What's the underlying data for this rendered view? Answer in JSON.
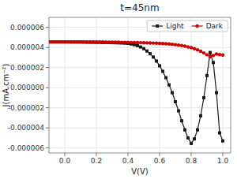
{
  "chart_data": {
    "type": "line",
    "title": "t=45nm",
    "xlabel": "V(V)",
    "ylabel": "J(mA.cm⁻²)",
    "x": [
      -0.1,
      -0.08,
      -0.06,
      -0.04,
      -0.02,
      0.0,
      0.02,
      0.04,
      0.06,
      0.08,
      0.1,
      0.12,
      0.14,
      0.16,
      0.18,
      0.2,
      0.22,
      0.24,
      0.26,
      0.28,
      0.3,
      0.32,
      0.34,
      0.36,
      0.38,
      0.4,
      0.42,
      0.44,
      0.46,
      0.48,
      0.5,
      0.52,
      0.54,
      0.56,
      0.58,
      0.6,
      0.62,
      0.64,
      0.66,
      0.68,
      0.7,
      0.72,
      0.74,
      0.76,
      0.78,
      0.8,
      0.82,
      0.84,
      0.86,
      0.88,
      0.9,
      0.92,
      0.94,
      0.96,
      0.98,
      1.0
    ],
    "series": [
      {
        "name": "Light",
        "color": "#1a1a1a",
        "marker": "square",
        "values": [
          4.55e-06,
          4.55e-06,
          4.55e-06,
          4.55e-06,
          4.55e-06,
          4.55e-06,
          4.55e-06,
          4.54e-06,
          4.54e-06,
          4.54e-06,
          4.54e-06,
          4.53e-06,
          4.53e-06,
          4.52e-06,
          4.52e-06,
          4.51e-06,
          4.51e-06,
          4.5e-06,
          4.5e-06,
          4.49e-06,
          4.48e-06,
          4.47e-06,
          4.46e-06,
          4.45e-06,
          4.43e-06,
          4.41e-06,
          4.35e-06,
          4.28e-06,
          4.18e-06,
          4.05e-06,
          3.88e-06,
          3.65e-06,
          3.38e-06,
          3.05e-06,
          2.65e-06,
          2.18e-06,
          1.63e-06,
          1e-06,
          2.8e-07,
          -5e-07,
          -1.4e-06,
          -2.3e-06,
          -3.3e-06,
          -4.2e-06,
          -5e-06,
          -5.55e-06,
          -5.1e-06,
          -4.2e-06,
          -2.8e-06,
          -1e-06,
          1.2e-06,
          3.5e-06,
          2.5e-06,
          -5e-07,
          -4.5e-06,
          -5.3e-06
        ]
      },
      {
        "name": "Dark",
        "color": "#cc0000",
        "marker": "circle",
        "values": [
          4.56e-06,
          4.56e-06,
          4.56e-06,
          4.56e-06,
          4.56e-06,
          4.56e-06,
          4.56e-06,
          4.56e-06,
          4.56e-06,
          4.56e-06,
          4.56e-06,
          4.56e-06,
          4.55e-06,
          4.55e-06,
          4.55e-06,
          4.55e-06,
          4.55e-06,
          4.55e-06,
          4.54e-06,
          4.54e-06,
          4.54e-06,
          4.53e-06,
          4.53e-06,
          4.52e-06,
          4.52e-06,
          4.51e-06,
          4.5e-06,
          4.5e-06,
          4.49e-06,
          4.48e-06,
          4.47e-06,
          4.46e-06,
          4.45e-06,
          4.44e-06,
          4.43e-06,
          4.41e-06,
          4.39e-06,
          4.37e-06,
          4.35e-06,
          4.32e-06,
          4.28e-06,
          4.24e-06,
          4.19e-06,
          4.13e-06,
          4.06e-06,
          3.98e-06,
          3.88e-06,
          3.76e-06,
          3.62e-06,
          3.46e-06,
          3.28e-06,
          3.08e-06,
          3.2e-06,
          3.35e-06,
          3.3e-06,
          3.25e-06
        ]
      }
    ],
    "xlim": [
      -0.1,
      1.05
    ],
    "ylim": [
      -6.5e-06,
      7e-06
    ],
    "xticks": [
      {
        "value": 0,
        "label": "0.0"
      },
      0.2,
      0.4,
      0.6,
      0.8,
      {
        "value": 1,
        "label": "1.0"
      }
    ],
    "yticks": [
      {
        "value": -6e-06,
        "label": "-0.000006"
      },
      {
        "value": -4e-06,
        "label": "-0.000004"
      },
      {
        "value": -2e-06,
        "label": "-0.000002"
      },
      {
        "value": 0,
        "label": "0.000000"
      },
      {
        "value": 2e-06,
        "label": "0.000002"
      },
      {
        "value": 4e-06,
        "label": "0.000004"
      },
      {
        "value": 6e-06,
        "label": "0.000006"
      }
    ],
    "grid": true,
    "legend": "upper right"
  }
}
